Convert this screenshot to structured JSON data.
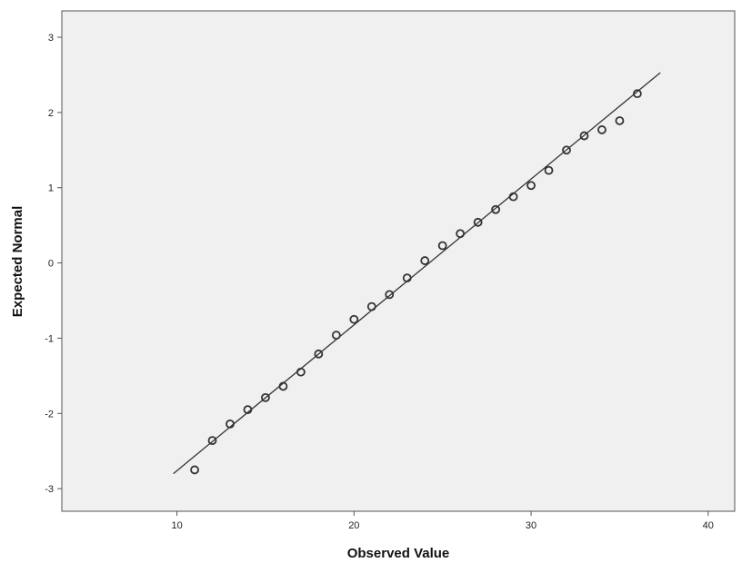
{
  "chart_data": {
    "type": "scatter",
    "title": "",
    "xlabel": "Observed Value",
    "ylabel": "Expected Normal",
    "xlim": [
      3.5,
      41.5
    ],
    "ylim": [
      -3.3,
      3.35
    ],
    "x_ticks": [
      10,
      20,
      30,
      40
    ],
    "y_ticks": [
      -3,
      -2,
      -1,
      0,
      1,
      2,
      3
    ],
    "grid": false,
    "series": [
      {
        "marker": "hollow-circle",
        "points": [
          [
            11,
            -2.75
          ],
          [
            12,
            -2.36
          ],
          [
            13,
            -2.14
          ],
          [
            14,
            -1.95
          ],
          [
            15,
            -1.79
          ],
          [
            16,
            -1.64
          ],
          [
            17,
            -1.45
          ],
          [
            18,
            -1.21
          ],
          [
            19,
            -0.96
          ],
          [
            20,
            -0.75
          ],
          [
            21,
            -0.58
          ],
          [
            22,
            -0.42
          ],
          [
            23,
            -0.2
          ],
          [
            24,
            0.03
          ],
          [
            25,
            0.23
          ],
          [
            26,
            0.39
          ],
          [
            27,
            0.54
          ],
          [
            28,
            0.71
          ],
          [
            29,
            0.88
          ],
          [
            30,
            1.03
          ],
          [
            31,
            1.23
          ],
          [
            32,
            1.5
          ],
          [
            33,
            1.69
          ],
          [
            34,
            1.77
          ],
          [
            35,
            1.89
          ],
          [
            36,
            2.25
          ]
        ]
      }
    ],
    "reference_line": {
      "x": [
        9.8,
        37.3
      ],
      "y": [
        -2.8,
        2.53
      ]
    },
    "colors": {
      "plot_background": "#f0f0f0",
      "marker": "#333333",
      "line": "#333333",
      "frame": "#555555"
    }
  }
}
